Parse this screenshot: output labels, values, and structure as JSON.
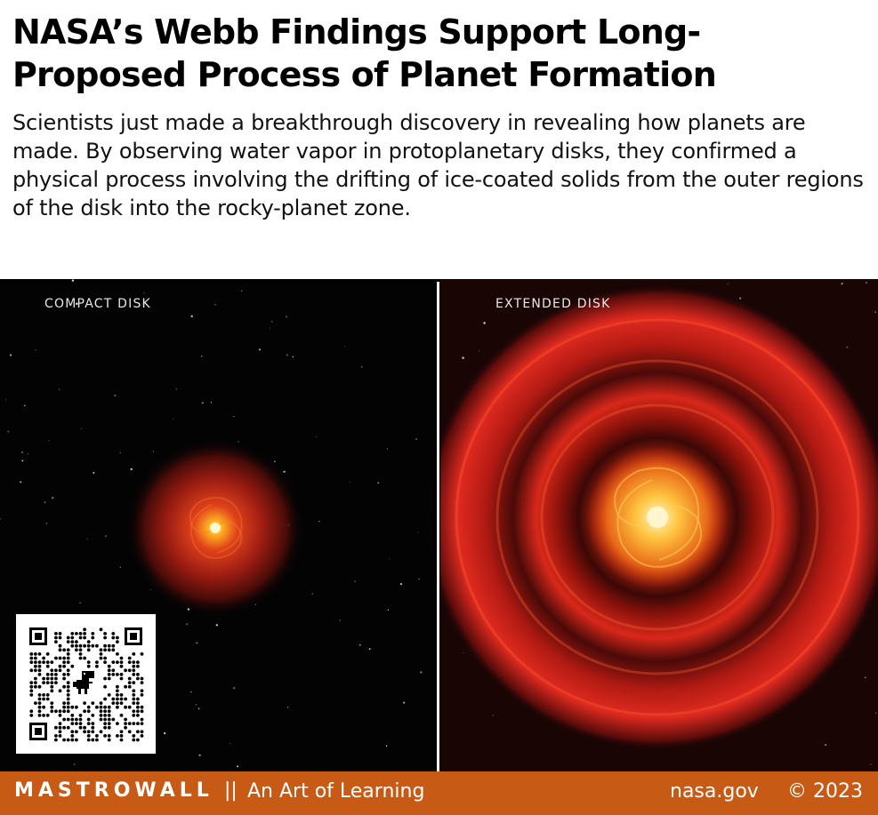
{
  "header": {
    "title": "NASA’s Webb Findings Support Long-Proposed Process of Planet Formation",
    "description": "Scientists just made a breakthrough discovery in revealing how planets are made. By observing water vapor in protoplanetary disks, they confirmed a physical process involving the drifting of ice-coated solids from the outer regions of the disk into the rocky-planet zone."
  },
  "panels": {
    "left_label": "COMPACT DISK",
    "right_label": "EXTENDED DISK"
  },
  "footer": {
    "brand": "MASTROWALL",
    "separator": "||",
    "tagline": "An Art of Learning",
    "source": "nasa.gov",
    "copyright": "© 2023",
    "background_color": "#c75a15"
  },
  "icons": {
    "qr": "qr-code-icon",
    "dino": "dinosaur-icon"
  }
}
